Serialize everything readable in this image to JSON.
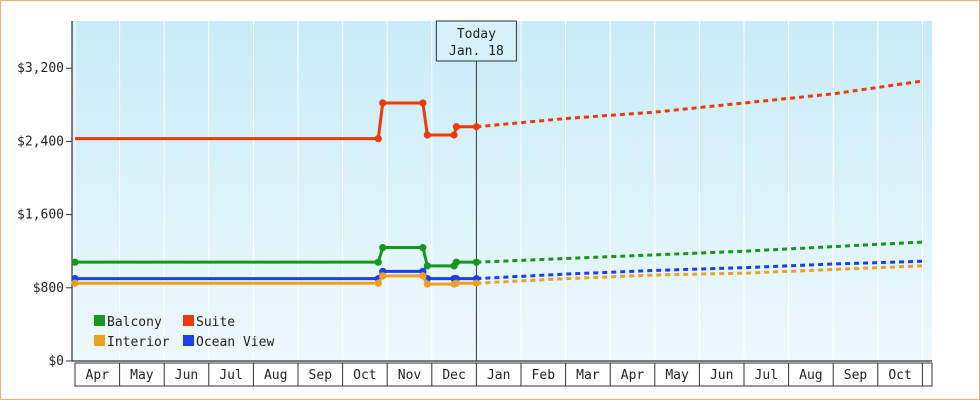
{
  "chart_data": {
    "type": "line",
    "x": [
      "Apr",
      "May",
      "Jun",
      "Jul",
      "Aug",
      "Sep",
      "Oct",
      "Nov",
      "Dec",
      "Jan",
      "Feb",
      "Mar",
      "Apr",
      "May",
      "Jun",
      "Jul",
      "Aug",
      "Sep",
      "Oct"
    ],
    "y_ticks": [
      "$0",
      "$800",
      "$1,600",
      "$2,400",
      "$3,200"
    ],
    "ylim": [
      0,
      3200
    ],
    "today": {
      "line1": "Today",
      "line2": "Jan. 18",
      "x": 9.0
    },
    "grid": {
      "horizontal": false,
      "vertical_x_ticks": true
    },
    "legend_position": "bottom-left",
    "background": {
      "top": "#c8ecf8",
      "bottom": "#eef9fd"
    },
    "series": [
      {
        "name": "Suite",
        "color": "#ee3a0a",
        "historical": [
          [
            0,
            2430
          ],
          [
            6.8,
            2430
          ],
          [
            6.9,
            2820
          ],
          [
            7.8,
            2820
          ],
          [
            7.9,
            2470
          ],
          [
            8.5,
            2470
          ],
          [
            8.55,
            2560
          ],
          [
            9.0,
            2560
          ]
        ],
        "markers": [
          [
            6.8,
            2430
          ],
          [
            6.9,
            2820
          ],
          [
            7.8,
            2820
          ],
          [
            7.9,
            2470
          ],
          [
            8.5,
            2470
          ],
          [
            8.55,
            2560
          ],
          [
            9.0,
            2560
          ]
        ],
        "forecast": [
          [
            9.0,
            2560
          ],
          [
            11,
            2650
          ],
          [
            13,
            2720
          ],
          [
            15,
            2820
          ],
          [
            17,
            2920
          ],
          [
            19,
            3060
          ]
        ]
      },
      {
        "name": "Balcony",
        "color": "#16961a",
        "historical": [
          [
            0,
            1080
          ],
          [
            6.8,
            1080
          ],
          [
            6.9,
            1240
          ],
          [
            7.8,
            1240
          ],
          [
            7.9,
            1040
          ],
          [
            8.5,
            1040
          ],
          [
            8.55,
            1080
          ],
          [
            9.0,
            1080
          ]
        ],
        "markers": [
          [
            0,
            1080
          ],
          [
            6.8,
            1080
          ],
          [
            6.9,
            1240
          ],
          [
            7.8,
            1240
          ],
          [
            7.9,
            1040
          ],
          [
            8.5,
            1040
          ],
          [
            8.55,
            1080
          ],
          [
            9.0,
            1080
          ]
        ],
        "forecast": [
          [
            9.0,
            1080
          ],
          [
            11,
            1120
          ],
          [
            13,
            1160
          ],
          [
            15,
            1200
          ],
          [
            17,
            1250
          ],
          [
            19,
            1300
          ]
        ]
      },
      {
        "name": "Ocean View",
        "color": "#1a3ff0",
        "historical": [
          [
            0,
            900
          ],
          [
            6.8,
            900
          ],
          [
            6.9,
            980
          ],
          [
            7.8,
            980
          ],
          [
            7.9,
            900
          ],
          [
            8.5,
            900
          ],
          [
            8.55,
            900
          ],
          [
            9.0,
            900
          ]
        ],
        "markers": [
          [
            0,
            900
          ],
          [
            6.8,
            900
          ],
          [
            6.9,
            980
          ],
          [
            7.8,
            980
          ],
          [
            7.9,
            900
          ],
          [
            8.5,
            900
          ],
          [
            8.55,
            900
          ],
          [
            9.0,
            900
          ]
        ],
        "forecast": [
          [
            9.0,
            900
          ],
          [
            11,
            950
          ],
          [
            13,
            990
          ],
          [
            15,
            1020
          ],
          [
            17,
            1060
          ],
          [
            19,
            1090
          ]
        ]
      },
      {
        "name": "Interior",
        "color": "#f0a020",
        "historical": [
          [
            0,
            850
          ],
          [
            6.8,
            850
          ],
          [
            6.9,
            930
          ],
          [
            7.8,
            930
          ],
          [
            7.9,
            840
          ],
          [
            8.5,
            840
          ],
          [
            8.55,
            850
          ],
          [
            9.0,
            850
          ]
        ],
        "markers": [
          [
            0,
            850
          ],
          [
            6.8,
            850
          ],
          [
            6.9,
            930
          ],
          [
            7.8,
            930
          ],
          [
            7.9,
            840
          ],
          [
            8.5,
            840
          ],
          [
            8.55,
            850
          ],
          [
            9.0,
            850
          ]
        ],
        "forecast": [
          [
            9.0,
            850
          ],
          [
            11,
            900
          ],
          [
            13,
            940
          ],
          [
            15,
            960
          ],
          [
            17,
            1000
          ],
          [
            19,
            1040
          ]
        ]
      }
    ],
    "legend": [
      {
        "name": "Balcony",
        "color": "#16961a"
      },
      {
        "name": "Suite",
        "color": "#ee3a0a"
      },
      {
        "name": "Interior",
        "color": "#f0a020"
      },
      {
        "name": "Ocean View",
        "color": "#1a3ff0"
      }
    ]
  }
}
